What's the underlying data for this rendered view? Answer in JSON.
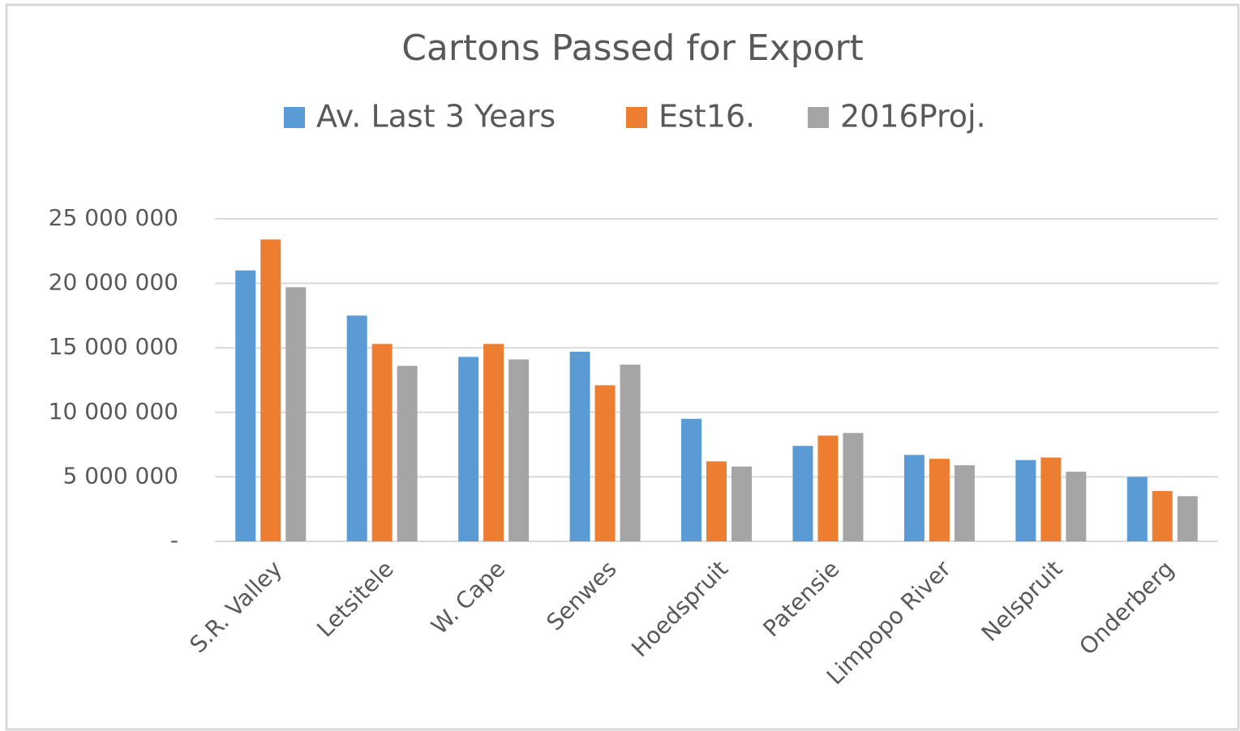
{
  "chart_data": {
    "type": "bar",
    "title": "Cartons Passed for Export",
    "categories": [
      "S.R. Valley",
      "Letsitele",
      "W. Cape",
      "Senwes",
      "Hoedspruit",
      "Patensie",
      "Limpopo River",
      "Nelspruit",
      "Onderberg"
    ],
    "series": [
      {
        "name": "Av. Last 3 Years",
        "color": "#5b9bd5",
        "values": [
          21000000,
          17500000,
          14300000,
          14700000,
          9500000,
          7400000,
          6700000,
          6300000,
          5000000
        ]
      },
      {
        "name": "Est16.",
        "color": "#ed7d31",
        "values": [
          23400000,
          15300000,
          15300000,
          12100000,
          6200000,
          8200000,
          6400000,
          6500000,
          3900000
        ]
      },
      {
        "name": "2016Proj.",
        "color": "#a5a5a5",
        "values": [
          19700000,
          13600000,
          14100000,
          13700000,
          5800000,
          8400000,
          5900000,
          5400000,
          3500000
        ]
      }
    ],
    "ylim": [
      0,
      25000000
    ],
    "yticks": [
      {
        "value": 0,
        "label": "-"
      },
      {
        "value": 5000000,
        "label": "5 000 000"
      },
      {
        "value": 10000000,
        "label": "10 000 000"
      },
      {
        "value": 15000000,
        "label": "15 000 000"
      },
      {
        "value": 20000000,
        "label": "20 000 000"
      },
      {
        "value": 25000000,
        "label": "25 000 000"
      }
    ],
    "grid": true,
    "legend": "top"
  }
}
